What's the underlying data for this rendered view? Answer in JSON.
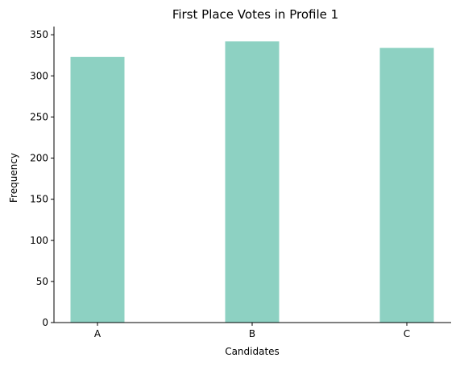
{
  "chart_data": {
    "type": "bar",
    "title": "First Place Votes in Profile 1",
    "xlabel": "Candidates",
    "ylabel": "Frequency",
    "categories": [
      "A",
      "B",
      "C"
    ],
    "values": [
      323,
      342,
      334
    ],
    "ylim": [
      0,
      360
    ],
    "yticks": [
      0,
      50,
      100,
      150,
      200,
      250,
      300,
      350
    ],
    "bar_color": "#8dd1c2",
    "grid": false,
    "legend": "none"
  }
}
